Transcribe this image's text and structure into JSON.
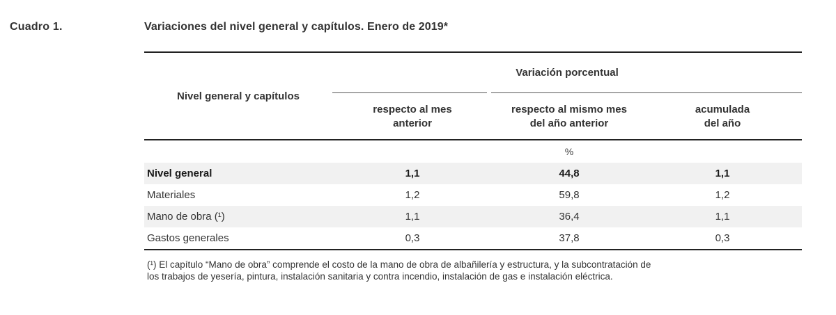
{
  "header": {
    "cuadro": "Cuadro 1.",
    "title": "Variaciones del nivel general y capítulos. Enero de 2019*"
  },
  "table": {
    "row_heading": "Nivel general y capítulos",
    "group_heading": "Variación porcentual",
    "columns": [
      {
        "line1": "respecto al mes",
        "line2": "anterior"
      },
      {
        "line1": "respecto al mismo mes",
        "line2": "del año anterior"
      },
      {
        "line1": "acumulada",
        "line2": "del año"
      }
    ],
    "unit": "%",
    "rows": [
      {
        "label": "Nivel general",
        "values": [
          "1,1",
          "44,8",
          "1,1"
        ]
      },
      {
        "label": "Materiales",
        "values": [
          "1,2",
          "59,8",
          "1,2"
        ]
      },
      {
        "label": "Mano de obra (¹)",
        "values": [
          "1,1",
          "36,4",
          "1,1"
        ]
      },
      {
        "label": "Gastos generales",
        "values": [
          "0,3",
          "37,8",
          "0,3"
        ]
      }
    ]
  },
  "footnote": {
    "marker": "(¹)",
    "line1": "El capítulo “Mano de obra” comprende el costo de la mano de obra de albañilería y estructura, y la subcontratación de",
    "line2": "los trabajos de yesería, pintura, instalación sanitaria y contra incendio, instalación de gas e instalación eléctrica."
  }
}
